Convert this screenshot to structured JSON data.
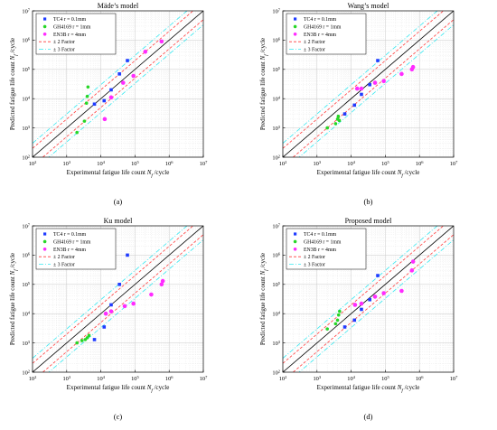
{
  "colors": {
    "tc4": "#1f3bff",
    "gh4169": "#27d627",
    "en3b": "#ff2bff",
    "line1": "#000000",
    "line2": "#ff3b3b",
    "line3": "#35e8f0",
    "grid": "#dddddd",
    "axis": "#000000"
  },
  "chart_data": [
    {
      "type": "scatter",
      "panel": "(a)",
      "title": "Mäde’s model",
      "xlabel": "Experimental fatigue life count N_f /cycle",
      "ylabel": "Predicted fatigue life count N_f /cycle",
      "xlim": [
        100,
        10000000
      ],
      "ylim": [
        100,
        10000000
      ],
      "log_scale": true,
      "grid": true,
      "legend_placement": "top-left",
      "legend": [
        "TC4 r = 0.1mm",
        "GH4169 r = 1mm",
        "EN3B r = 4mm",
        "± 2 Factor",
        "± 3 Factor"
      ],
      "series": [
        {
          "name": "TC4 r = 0.1mm",
          "marker": "square",
          "color_key": "tc4",
          "x": [
            6500,
            12500,
            20000,
            35000,
            60000
          ],
          "y": [
            6500,
            8500,
            20000,
            70000,
            200000
          ]
        },
        {
          "name": "GH4169 r = 1mm",
          "marker": "dot",
          "color_key": "gh4169",
          "x": [
            2000,
            3300,
            3800,
            4000,
            4200
          ],
          "y": [
            700,
            1700,
            7000,
            12000,
            25000
          ]
        },
        {
          "name": "EN3B r = 4mm",
          "marker": "dot",
          "color_key": "en3b",
          "x": [
            13000,
            20000,
            45000,
            90000,
            200000,
            600000
          ],
          "y": [
            2000,
            11000,
            35000,
            60000,
            400000,
            900000
          ]
        }
      ],
      "reference_lines": {
        "identity": "1:1",
        "factor_2": [
          0.5,
          2
        ],
        "factor_3": [
          0.3333,
          3
        ]
      }
    },
    {
      "type": "scatter",
      "panel": "(b)",
      "title": "Wang’s model",
      "xlabel": "Experimental fatigue life count N_f /cycle",
      "ylabel": "Predicted fatigue life count N_f /cycle",
      "xlim": [
        100,
        10000000
      ],
      "ylim": [
        100,
        10000000
      ],
      "log_scale": true,
      "grid": true,
      "legend_placement": "top-left",
      "legend": [
        "TC4 r = 0.1mm",
        "GH4169 r = 1mm",
        "EN3B r = 4mm",
        "± 2 Factor",
        "± 3 Factor"
      ],
      "series": [
        {
          "name": "TC4 r = 0.1mm",
          "marker": "square",
          "color_key": "tc4",
          "x": [
            6500,
            12500,
            20000,
            35000,
            60000
          ],
          "y": [
            3000,
            6000,
            14000,
            30000,
            200000
          ]
        },
        {
          "name": "GH4169 r = 1mm",
          "marker": "dot",
          "color_key": "gh4169",
          "x": [
            2000,
            3500,
            4000,
            4200,
            4500
          ],
          "y": [
            1000,
            1400,
            2000,
            2500,
            1800
          ]
        },
        {
          "name": "EN3B r = 4mm",
          "marker": "dot",
          "color_key": "en3b",
          "x": [
            15000,
            20000,
            50000,
            90000,
            300000,
            600000,
            650000
          ],
          "y": [
            22000,
            22000,
            35000,
            40000,
            70000,
            100000,
            120000
          ]
        }
      ],
      "reference_lines": {
        "identity": "1:1",
        "factor_2": [
          0.5,
          2
        ],
        "factor_3": [
          0.3333,
          3
        ]
      }
    },
    {
      "type": "scatter",
      "panel": "(c)",
      "title": "Ku model",
      "xlabel": "Experimental fatigue life count N_f /cycle",
      "ylabel": "Predicted fatigue life count N_f /cycle",
      "xlim": [
        100,
        10000000
      ],
      "ylim": [
        100,
        10000000
      ],
      "log_scale": true,
      "grid": true,
      "legend_placement": "top-left",
      "legend": [
        "TC4 r = 0.1mm",
        "GH4169 r = 1mm",
        "EN3B r = 4mm",
        "± 2 Factor",
        "± 3 Factor"
      ],
      "series": [
        {
          "name": "TC4 r = 0.1mm",
          "marker": "square",
          "color_key": "tc4",
          "x": [
            6500,
            12500,
            20000,
            35000,
            60000
          ],
          "y": [
            1300,
            3500,
            20000,
            100000,
            1000000
          ]
        },
        {
          "name": "GH4169 r = 1mm",
          "marker": "dot",
          "color_key": "gh4169",
          "x": [
            2000,
            2800,
            3500,
            4000,
            4500
          ],
          "y": [
            1000,
            1200,
            1300,
            1500,
            1800
          ]
        },
        {
          "name": "EN3B r = 4mm",
          "marker": "dot",
          "color_key": "en3b",
          "x": [
            14000,
            20000,
            50000,
            90000,
            300000,
            600000,
            650000
          ],
          "y": [
            10000,
            12000,
            18000,
            22000,
            45000,
            100000,
            130000
          ]
        }
      ],
      "reference_lines": {
        "identity": "1:1",
        "factor_2": [
          0.5,
          2
        ],
        "factor_3": [
          0.3333,
          3
        ]
      }
    },
    {
      "type": "scatter",
      "panel": "(d)",
      "title": "Proposed model",
      "xlabel": "Experimental fatigue life count N_f /cycle",
      "ylabel": "Predicted fatigue life count N_f /cycle",
      "xlim": [
        100,
        10000000
      ],
      "ylim": [
        100,
        10000000
      ],
      "log_scale": true,
      "grid": true,
      "legend_placement": "top-left",
      "legend": [
        "TC4 r = 0.1mm",
        "GH4169 r = 1mm",
        "EN3B r = 4mm",
        "± 2 Factor",
        "± 3 Factor"
      ],
      "series": [
        {
          "name": "TC4 r = 0.1mm",
          "marker": "square",
          "color_key": "tc4",
          "x": [
            6500,
            12500,
            20000,
            35000,
            60000
          ],
          "y": [
            3500,
            6000,
            14000,
            30000,
            200000
          ]
        },
        {
          "name": "GH4169 r = 1mm",
          "marker": "dot",
          "color_key": "gh4169",
          "x": [
            2000,
            3500,
            4000,
            4300,
            4600
          ],
          "y": [
            3000,
            4500,
            6000,
            9000,
            12000
          ]
        },
        {
          "name": "EN3B r = 4mm",
          "marker": "dot",
          "color_key": "en3b",
          "x": [
            13000,
            20000,
            50000,
            90000,
            300000,
            600000,
            650000
          ],
          "y": [
            20000,
            22000,
            38000,
            50000,
            60000,
            300000,
            600000
          ]
        }
      ],
      "reference_lines": {
        "identity": "1:1",
        "factor_2": [
          0.5,
          2
        ],
        "factor_3": [
          0.3333,
          3
        ]
      }
    }
  ]
}
